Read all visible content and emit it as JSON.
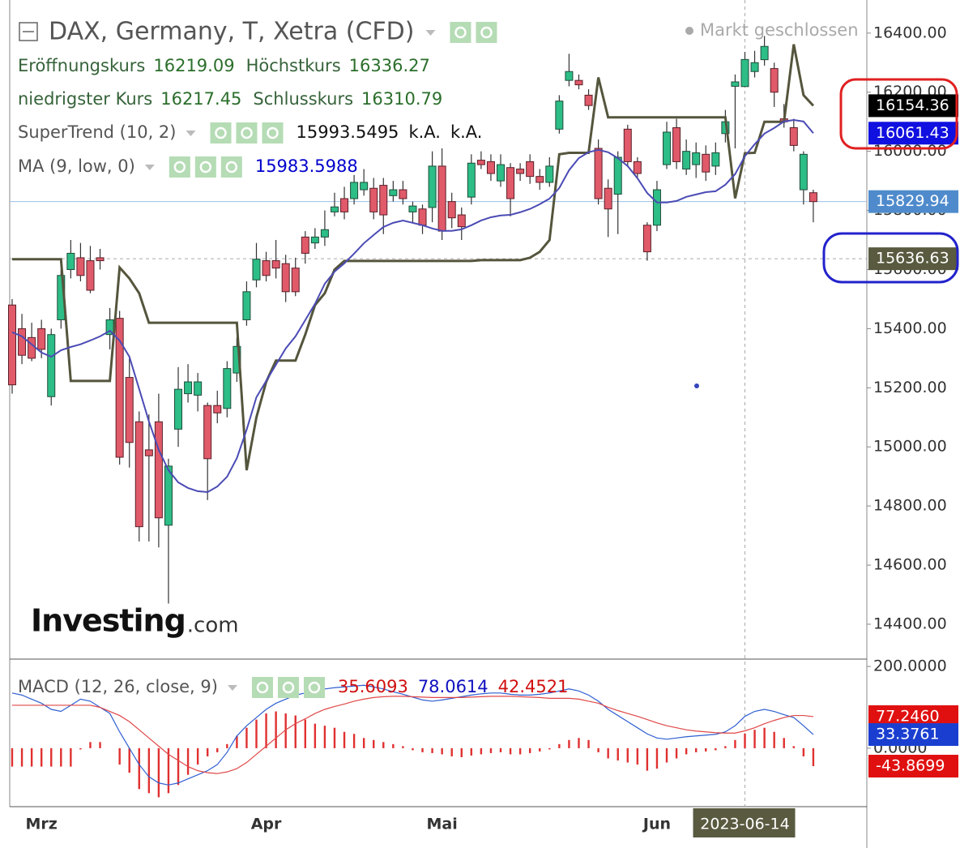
{
  "chart_data": [
    {
      "type": "candlestick",
      "title": "DAX, Germany, T, Xetra (CFD)",
      "status": "Markt geschlossen",
      "ohlc_labels": [
        "Eröffnungskurs",
        "Höchstkurs",
        "niedrigster Kurs",
        "Schlusskurs"
      ],
      "up_color": "#2dbd86",
      "down_color": "#e05a6a",
      "categories": [
        null,
        null,
        null,
        "Mrz",
        null,
        null,
        null,
        null,
        null,
        null,
        null,
        null,
        null,
        null,
        null,
        null,
        null,
        null,
        null,
        null,
        null,
        null,
        null,
        null,
        null,
        null,
        "Apr",
        null,
        null,
        null,
        null,
        null,
        null,
        null,
        null,
        null,
        null,
        null,
        null,
        null,
        null,
        null,
        null,
        null,
        "Mai",
        null,
        null,
        null,
        null,
        null,
        null,
        null,
        null,
        null,
        null,
        null,
        null,
        null,
        null,
        null,
        null,
        null,
        null,
        null,
        null,
        null,
        "Jun",
        null,
        null,
        null,
        null,
        null,
        null,
        null,
        null,
        "2023-06-14",
        null,
        null,
        null,
        null,
        null,
        null,
        null
      ],
      "open": [
        15480,
        15400,
        15370,
        15400,
        15170,
        15430,
        15600,
        15640,
        15630,
        15640,
        15380,
        15435,
        15235,
        15085,
        14990,
        15085,
        14735,
        15060,
        15180,
        15175,
        15140,
        15140,
        15130,
        15250,
        15430,
        15565,
        15630,
        15630,
        15620,
        15605,
        15710,
        15690,
        15710,
        15795,
        15840,
        15840,
        15870,
        15875,
        15885,
        15850,
        15870,
        15795,
        15805,
        15810,
        15950,
        15830,
        15785,
        15845,
        15970,
        15965,
        15900,
        15945,
        15940,
        15965,
        15915,
        15895,
        16075,
        16240,
        16240,
        16190,
        16010,
        15875,
        15855,
        16075,
        15965,
        15750,
        15750,
        15955,
        16080,
        15940,
        15955,
        15990,
        15950,
        16060,
        16220,
        16219.09,
        16270,
        16310,
        16280,
        16110,
        16080,
        15870,
        15860
      ],
      "high": [
        15500,
        15450,
        15420,
        15430,
        15400,
        15600,
        15700,
        15690,
        15680,
        15670,
        15470,
        15460,
        15300,
        15120,
        15110,
        15180,
        14960,
        15270,
        15280,
        15250,
        15150,
        15190,
        15290,
        15370,
        15560,
        15690,
        15660,
        15700,
        15650,
        15640,
        15730,
        15740,
        15800,
        15860,
        15880,
        15920,
        15940,
        15910,
        15910,
        15900,
        15900,
        15830,
        15820,
        16000,
        16010,
        15860,
        15810,
        15990,
        16000,
        15990,
        15990,
        15960,
        15960,
        15990,
        15940,
        15980,
        16190,
        16330,
        16260,
        16210,
        16040,
        15905,
        16000,
        16090,
        15980,
        15760,
        15900,
        16100,
        16110,
        16040,
        16030,
        16020,
        16030,
        16140,
        16260,
        16336.27,
        16340,
        16390,
        16300,
        16160,
        16110,
        16000,
        15870
      ],
      "low": [
        15180,
        15280,
        15290,
        15300,
        15140,
        15400,
        15570,
        15560,
        15520,
        15600,
        15330,
        14940,
        14930,
        14680,
        14680,
        14660,
        14470,
        15000,
        15150,
        15120,
        14820,
        15080,
        15100,
        15220,
        15410,
        15540,
        15560,
        15570,
        15490,
        15510,
        15620,
        15670,
        15680,
        15780,
        15770,
        15820,
        15850,
        15770,
        15720,
        15830,
        15820,
        15760,
        15720,
        15760,
        15700,
        15740,
        15700,
        15820,
        15940,
        15900,
        15880,
        15780,
        15900,
        15890,
        15870,
        15880,
        16060,
        16220,
        16210,
        16140,
        15820,
        15710,
        15720,
        15950,
        15910,
        15630,
        15730,
        15940,
        15940,
        15920,
        15910,
        15900,
        15920,
        16030,
        16010,
        16217.45,
        16250,
        16290,
        16150,
        16080,
        16000,
        15820,
        15760
      ],
      "close": [
        15210,
        15310,
        15300,
        15330,
        15380,
        15580,
        15655,
        15580,
        15530,
        15630,
        15430,
        14965,
        15015,
        14730,
        14970,
        14760,
        14935,
        15195,
        15220,
        15220,
        14960,
        15115,
        15265,
        15340,
        15525,
        15635,
        15580,
        15605,
        15525,
        15525,
        15655,
        15710,
        15735,
        15812,
        15795,
        15895,
        15895,
        15795,
        15785,
        15870,
        15840,
        15815,
        15750,
        15950,
        15730,
        15775,
        15745,
        15960,
        15955,
        15925,
        15955,
        15840,
        15925,
        15915,
        15895,
        15950,
        16170,
        16270,
        16225,
        16155,
        15840,
        15805,
        15980,
        15965,
        15925,
        15660,
        15870,
        16065,
        15965,
        16000,
        15995,
        15930,
        15995,
        16100,
        16235,
        16310.79,
        16300,
        16355,
        16200,
        16100,
        16020,
        15990,
        15829.94
      ],
      "series": [
        {
          "name": "SuperTrend (10, 2)",
          "color": "#55553d",
          "extra": [
            "k.A.",
            "k.A."
          ],
          "values": [
            15635,
            15635,
            15635,
            15635,
            15635,
            15635,
            15223,
            15223,
            15223,
            15223,
            15223,
            15607,
            15570,
            15520,
            15420,
            15420,
            15420,
            15420,
            15420,
            15420,
            15420,
            15420,
            15420,
            15420,
            14921,
            15100,
            15220,
            15292,
            15292,
            15292,
            15380,
            15480,
            15520,
            15600,
            15629,
            15629,
            15629,
            15629,
            15629,
            15629,
            15629,
            15629,
            15629,
            15629,
            15629,
            15629,
            15629,
            15629,
            15632,
            15632,
            15632,
            15632,
            15632,
            15640,
            15660,
            15700,
            15990,
            15995,
            15995,
            15995,
            16250,
            16115,
            16115,
            16115,
            16115,
            16115,
            16115,
            16115,
            16115,
            16115,
            16115,
            16115,
            16115,
            16115,
            15841,
            15993.5495,
            15995,
            16100,
            16100,
            16100,
            16362,
            16190,
            16154.36
          ]
        },
        {
          "name": "MA (9, low, 0)",
          "color": "#4b4bb5",
          "values": [
            15388,
            15374,
            15347,
            15319,
            15305,
            15327,
            15338,
            15347,
            15360,
            15374,
            15393,
            15360,
            15305,
            15196,
            15086,
            14990,
            14921,
            14880,
            14861,
            14850,
            14847,
            14866,
            14899,
            14962,
            15058,
            15168,
            15223,
            15278,
            15333,
            15374,
            15429,
            15484,
            15552,
            15593,
            15621,
            15654,
            15689,
            15717,
            15744,
            15758,
            15766,
            15758,
            15750,
            15739,
            15731,
            15731,
            15736,
            15750,
            15766,
            15777,
            15783,
            15785,
            15794,
            15805,
            15821,
            15840,
            15876,
            15936,
            15977,
            15997,
            16005,
            15997,
            15977,
            15950,
            15909,
            15859,
            15827,
            15827,
            15832,
            15846,
            15854,
            15862,
            15865,
            15887,
            15923,
            15983.5988,
            16024,
            16060,
            16079,
            16101,
            16106,
            16101,
            16061.43
          ]
        }
      ],
      "crosshair_price": 15636.63,
      "ylim": [
        14282,
        16512
      ],
      "yticks": [
        {
          "value": 14400,
          "label": "14400.00"
        },
        {
          "value": 14600,
          "label": "14600.00"
        },
        {
          "value": 14800,
          "label": "14800.00"
        },
        {
          "value": 15000,
          "label": "15000.00"
        },
        {
          "value": 15200,
          "label": "15200.00"
        },
        {
          "value": 15400,
          "label": "15400.00"
        },
        {
          "value": 15600,
          "label": "15600.00"
        },
        {
          "value": 15800,
          "label": "15800.00"
        },
        {
          "value": 16000,
          "label": "16000.00"
        },
        {
          "value": 16200,
          "label": "16200.00"
        },
        {
          "value": 16400,
          "label": "16400.00"
        }
      ]
    },
    {
      "type": "macd",
      "title": "MACD (12, 26, close, 9)",
      "series": [
        {
          "color": "#e03030",
          "kind": "bar",
          "values": [
            -45,
            -45,
            -45,
            -45,
            -45,
            -45,
            -45,
            -3,
            15,
            15,
            0,
            -40,
            -60,
            -100,
            -110,
            -120,
            -110,
            -90,
            -65,
            -40,
            -20,
            -10,
            10,
            30,
            50,
            70,
            85,
            90,
            85,
            80,
            70,
            60,
            55,
            50,
            40,
            35,
            25,
            20,
            15,
            10,
            5,
            -5,
            -10,
            -12,
            -15,
            -20,
            -22,
            -18,
            -15,
            -12,
            -10,
            -15,
            -15,
            -12,
            -8,
            -3,
            10,
            20,
            25,
            20,
            -10,
            -25,
            -30,
            -35,
            -40,
            -55,
            -50,
            -35,
            -25,
            -15,
            -10,
            -8,
            -5,
            5,
            20,
            35.6093,
            45,
            50,
            40,
            25,
            5,
            -20,
            -43.8699
          ]
        },
        {
          "color": "#2f5fd0",
          "kind": "line",
          "values": [
            135,
            130,
            120,
            110,
            95,
            90,
            105,
            120,
            115,
            100,
            85,
            40,
            0,
            -40,
            -70,
            -85,
            -90,
            -85,
            -75,
            -65,
            -55,
            -40,
            -10,
            30,
            55,
            75,
            95,
            110,
            120,
            130,
            135,
            140,
            145,
            148,
            150,
            152,
            154,
            150,
            145,
            138,
            132,
            125,
            118,
            115,
            118,
            122,
            126,
            130,
            133,
            135,
            135,
            132,
            130,
            130,
            132,
            135,
            140,
            145,
            140,
            130,
            115,
            95,
            80,
            65,
            50,
            35,
            25,
            22,
            25,
            28,
            30,
            32,
            34,
            40,
            55,
            78.0614,
            90,
            95,
            90,
            82,
            75,
            55,
            33.3761
          ]
        },
        {
          "color": "#e04848",
          "kind": "line",
          "values": [
            105,
            105,
            105,
            105,
            105,
            105,
            105,
            105,
            105,
            100,
            90,
            80,
            65,
            45,
            25,
            5,
            -15,
            -30,
            -45,
            -55,
            -60,
            -62,
            -58,
            -50,
            -35,
            -15,
            5,
            25,
            45,
            60,
            72,
            85,
            95,
            102,
            108,
            115,
            120,
            124,
            126,
            127,
            127,
            126,
            125,
            124,
            124,
            124,
            124,
            125,
            126,
            127,
            127,
            127,
            126,
            125,
            124,
            122,
            122,
            122,
            120,
            115,
            110,
            100,
            92,
            85,
            78,
            70,
            62,
            55,
            50,
            45,
            42,
            40,
            38,
            37,
            37,
            42.4521,
            50,
            60,
            68,
            75,
            80,
            80,
            77.246
          ],
          "value_labels": [
            null,
            null,
            null,
            null,
            null,
            null,
            null,
            null,
            null,
            null,
            null,
            null,
            null,
            null,
            null,
            null,
            null,
            null,
            null,
            null,
            null,
            null,
            null,
            null,
            null,
            null,
            null,
            null,
            null,
            null,
            null,
            null,
            null,
            null,
            null,
            null,
            null,
            null,
            null,
            null,
            null,
            null,
            null,
            null,
            null,
            null,
            null,
            null,
            null,
            null,
            null,
            null,
            null,
            null,
            null,
            null,
            null,
            null,
            null,
            null,
            null,
            null,
            null,
            null,
            null,
            null,
            null,
            null,
            null,
            null,
            null,
            null,
            null,
            null,
            null,
            null,
            null,
            null,
            null,
            null,
            null,
            null,
            "77.2460"
          ]
        }
      ],
      "ylim": [
        -143,
        214
      ],
      "yticks": [
        {
          "value": 200,
          "label": "200.0000"
        },
        {
          "value": 0,
          "label": "0.0000"
        }
      ]
    }
  ],
  "watermark": {
    "name": "Investing",
    "suffix": ".com"
  }
}
